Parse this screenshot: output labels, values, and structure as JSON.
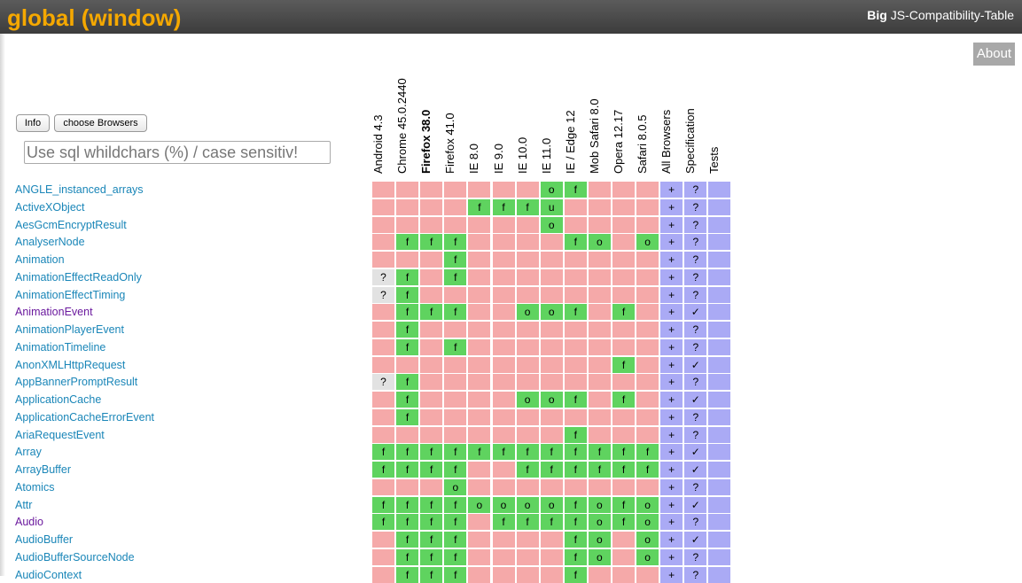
{
  "header": {
    "title": "global (window)",
    "site_bold": "Big",
    "site_rest": " JS-Compatibility-Table"
  },
  "about_label": "About",
  "info_label": "Info",
  "choose_label": "choose Browsers",
  "search_placeholder": "Use sql whildchars (%) / case sensitiv!",
  "columns": [
    "Android 4.3",
    "Chrome 45.0.2440",
    "Firefox 38.0",
    "Firefox 41.0",
    "IE 8.0",
    "IE 9.0",
    "IE 10.0",
    "IE 11.0",
    "IE / Edge 12",
    "Mob Safari 8.0",
    "Opera 12.17",
    "Safari 8.0.5",
    "All Browsers",
    "Specification",
    "Tests"
  ],
  "bold_column_index": 2,
  "colors": {
    "no": "#f5a9a9",
    "yes": "#5fd35f",
    "unknown": "#e2e2e2",
    "meta": "#aaaaf5",
    "link": "#1a86b8",
    "visited": "#6b1a9e"
  },
  "rows": [
    {
      "name": "ANGLE_instanced_arrays",
      "cells": [
        "",
        "",
        "",
        "",
        "",
        "",
        "",
        "o",
        "f",
        "",
        "",
        "",
        "+",
        "?",
        ""
      ]
    },
    {
      "name": "ActiveXObject",
      "cells": [
        "",
        "",
        "",
        "",
        "f",
        "f",
        "f",
        "u",
        "",
        "",
        "",
        "",
        "+",
        "?",
        ""
      ]
    },
    {
      "name": "AesGcmEncryptResult",
      "cells": [
        "",
        "",
        "",
        "",
        "",
        "",
        "",
        "o",
        "",
        "",
        "",
        "",
        "+",
        "?",
        ""
      ]
    },
    {
      "name": "AnalyserNode",
      "cells": [
        "",
        "f",
        "f",
        "f",
        "",
        "",
        "",
        "",
        "f",
        "o",
        "",
        "o",
        "+",
        "?",
        ""
      ]
    },
    {
      "name": "Animation",
      "cells": [
        "",
        "",
        "",
        "f",
        "",
        "",
        "",
        "",
        "",
        "",
        "",
        "",
        "+",
        "?",
        ""
      ]
    },
    {
      "name": "AnimationEffectReadOnly",
      "cells": [
        "?",
        "f",
        "",
        "f",
        "",
        "",
        "",
        "",
        "",
        "",
        "",
        "",
        "+",
        "?",
        ""
      ]
    },
    {
      "name": "AnimationEffectTiming",
      "cells": [
        "?",
        "f",
        "",
        "",
        "",
        "",
        "",
        "",
        "",
        "",
        "",
        "",
        "+",
        "?",
        ""
      ]
    },
    {
      "name": "AnimationEvent",
      "visited": true,
      "cells": [
        "",
        "f",
        "f",
        "f",
        "",
        "",
        "o",
        "o",
        "f",
        "",
        "f",
        "",
        "+",
        "✓",
        ""
      ]
    },
    {
      "name": "AnimationPlayerEvent",
      "cells": [
        "",
        "f",
        "",
        "",
        "",
        "",
        "",
        "",
        "",
        "",
        "",
        "",
        "+",
        "?",
        ""
      ]
    },
    {
      "name": "AnimationTimeline",
      "cells": [
        "",
        "f",
        "",
        "f",
        "",
        "",
        "",
        "",
        "",
        "",
        "",
        "",
        "+",
        "?",
        ""
      ]
    },
    {
      "name": "AnonXMLHttpRequest",
      "cells": [
        "",
        "",
        "",
        "",
        "",
        "",
        "",
        "",
        "",
        "",
        "f",
        "",
        "+",
        "✓",
        ""
      ]
    },
    {
      "name": "AppBannerPromptResult",
      "cells": [
        "?",
        "f",
        "",
        "",
        "",
        "",
        "",
        "",
        "",
        "",
        "",
        "",
        "+",
        "?",
        ""
      ]
    },
    {
      "name": "ApplicationCache",
      "cells": [
        "",
        "f",
        "",
        "",
        "",
        "",
        "o",
        "o",
        "f",
        "",
        "f",
        "",
        "+",
        "✓",
        ""
      ]
    },
    {
      "name": "ApplicationCacheErrorEvent",
      "cells": [
        "",
        "f",
        "",
        "",
        "",
        "",
        "",
        "",
        "",
        "",
        "",
        "",
        "+",
        "?",
        ""
      ]
    },
    {
      "name": "AriaRequestEvent",
      "cells": [
        "",
        "",
        "",
        "",
        "",
        "",
        "",
        "",
        "f",
        "",
        "",
        "",
        "+",
        "?",
        ""
      ]
    },
    {
      "name": "Array",
      "cells": [
        "f",
        "f",
        "f",
        "f",
        "f",
        "f",
        "f",
        "f",
        "f",
        "f",
        "f",
        "f",
        "+",
        "✓",
        ""
      ]
    },
    {
      "name": "ArrayBuffer",
      "cells": [
        "f",
        "f",
        "f",
        "f",
        "",
        "",
        "f",
        "f",
        "f",
        "f",
        "f",
        "f",
        "+",
        "✓",
        ""
      ]
    },
    {
      "name": "Atomics",
      "cells": [
        "",
        "",
        "",
        "o",
        "",
        "",
        "",
        "",
        "",
        "",
        "",
        "",
        "+",
        "?",
        ""
      ]
    },
    {
      "name": "Attr",
      "cells": [
        "f",
        "f",
        "f",
        "f",
        "o",
        "o",
        "o",
        "o",
        "f",
        "o",
        "f",
        "o",
        "+",
        "✓",
        ""
      ]
    },
    {
      "name": "Audio",
      "visited": true,
      "cells": [
        "f",
        "f",
        "f",
        "f",
        "",
        "f",
        "f",
        "f",
        "f",
        "o",
        "f",
        "o",
        "+",
        "?",
        ""
      ]
    },
    {
      "name": "AudioBuffer",
      "cells": [
        "",
        "f",
        "f",
        "f",
        "",
        "",
        "",
        "",
        "f",
        "o",
        "",
        "o",
        "+",
        "✓",
        ""
      ]
    },
    {
      "name": "AudioBufferSourceNode",
      "cells": [
        "",
        "f",
        "f",
        "f",
        "",
        "",
        "",
        "",
        "f",
        "o",
        "",
        "o",
        "+",
        "?",
        ""
      ]
    },
    {
      "name": "AudioContext",
      "cells": [
        "",
        "f",
        "f",
        "f",
        "",
        "",
        "",
        "",
        "f",
        "",
        "",
        "",
        "+",
        "?",
        ""
      ]
    }
  ]
}
